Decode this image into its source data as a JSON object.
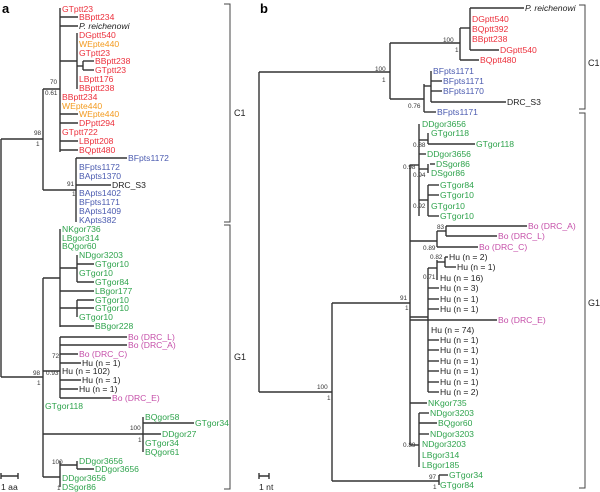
{
  "colors": {
    "red": "#ec2f3b",
    "orange": "#f39a1e",
    "blue": "#4b5bb0",
    "green": "#2ea34c",
    "magenta": "#c54fa9",
    "black": "#222222"
  },
  "panel_a": {
    "label": "a",
    "scale": "1 aa",
    "clades": [
      "C1",
      "G1"
    ],
    "leaves": [
      {
        "text": "GTptt23",
        "c": "red"
      },
      {
        "text": "BBptt234",
        "c": "red"
      },
      {
        "text": "P. reichenowi",
        "c": "black",
        "italic": true
      },
      {
        "text": "DGptt540",
        "c": "red"
      },
      {
        "text": "WEpte440",
        "c": "orange"
      },
      {
        "text": "GTptt23",
        "c": "red"
      },
      {
        "text": "BBptt238",
        "c": "red"
      },
      {
        "text": "GTptt23",
        "c": "red"
      },
      {
        "text": "LBptt176",
        "c": "red"
      },
      {
        "text": "BBptt238",
        "c": "red"
      },
      {
        "text": "BBptt234",
        "c": "red"
      },
      {
        "text": "WEpte440",
        "c": "orange"
      },
      {
        "text": "WEpte440",
        "c": "orange"
      },
      {
        "text": "DPptt294",
        "c": "red"
      },
      {
        "text": "GTptt722",
        "c": "red"
      },
      {
        "text": "LBptt208",
        "c": "red"
      },
      {
        "text": "BQptt480",
        "c": "red"
      },
      {
        "text": "BFpts1172",
        "c": "blue"
      },
      {
        "text": "BFpts1172",
        "c": "blue"
      },
      {
        "text": "BApts1370",
        "c": "blue"
      },
      {
        "text": "DRC_S3",
        "c": "black"
      },
      {
        "text": "BApts1402",
        "c": "blue"
      },
      {
        "text": "BFpts1171",
        "c": "blue"
      },
      {
        "text": "BApts1409",
        "c": "blue"
      },
      {
        "text": "KApts382",
        "c": "blue"
      },
      {
        "text": "NKgor736",
        "c": "green"
      },
      {
        "text": "LBgor314",
        "c": "green"
      },
      {
        "text": "BQgor60",
        "c": "green"
      },
      {
        "text": "NDgor3203",
        "c": "green"
      },
      {
        "text": "GTgor10",
        "c": "green"
      },
      {
        "text": "GTgor10",
        "c": "green"
      },
      {
        "text": "GTgor84",
        "c": "green"
      },
      {
        "text": "LBgor177",
        "c": "green"
      },
      {
        "text": "GTgor10",
        "c": "green"
      },
      {
        "text": "GTgor10",
        "c": "green"
      },
      {
        "text": "GTgor10",
        "c": "green"
      },
      {
        "text": "BBgor228",
        "c": "green"
      },
      {
        "text": "Bo (DRC_L)",
        "c": "magenta"
      },
      {
        "text": "Bo (DRC_A)",
        "c": "magenta"
      },
      {
        "text": "Bo (DRC_C)",
        "c": "magenta"
      },
      {
        "text": "Hu (n = 1)",
        "c": "black"
      },
      {
        "text": "Hu (n = 102)",
        "c": "black"
      },
      {
        "text": "Hu (n = 1)",
        "c": "black"
      },
      {
        "text": "Hu (n = 1)",
        "c": "black"
      },
      {
        "text": "Bo (DRC_E)",
        "c": "magenta"
      },
      {
        "text": "GTgor118",
        "c": "green"
      },
      {
        "text": "BQgor58",
        "c": "green"
      },
      {
        "text": "GTgor34",
        "c": "green"
      },
      {
        "text": "DDgor27",
        "c": "green"
      },
      {
        "text": "GTgor34",
        "c": "green"
      },
      {
        "text": "BQgor61",
        "c": "green"
      },
      {
        "text": "DDgor3656",
        "c": "green"
      },
      {
        "text": "DDgor3656",
        "c": "green"
      },
      {
        "text": "DDgor3656",
        "c": "green"
      },
      {
        "text": "DSgor86",
        "c": "green"
      }
    ],
    "support": [
      "70",
      "0.61",
      "98",
      "1",
      "91",
      "1",
      "72",
      "98",
      "0.93",
      "1",
      "100",
      "1",
      "100",
      "1"
    ]
  },
  "panel_b": {
    "label": "b",
    "scale": "1 nt",
    "clades": [
      "C1",
      "G1"
    ],
    "leaves": [
      {
        "text": "P. reichenowi",
        "c": "black",
        "italic": true
      },
      {
        "text": "DGptt540",
        "c": "red"
      },
      {
        "text": "BQptt392",
        "c": "red"
      },
      {
        "text": "BBptt238",
        "c": "red"
      },
      {
        "text": "DGptt540",
        "c": "red"
      },
      {
        "text": "BQptt480",
        "c": "red"
      },
      {
        "text": "BFpts1171",
        "c": "blue"
      },
      {
        "text": "BFpts1171",
        "c": "blue"
      },
      {
        "text": "BFpts1170",
        "c": "blue"
      },
      {
        "text": "DRC_S3",
        "c": "black"
      },
      {
        "text": "BFpts1171",
        "c": "blue"
      },
      {
        "text": "DDgor3656",
        "c": "green"
      },
      {
        "text": "GTgor118",
        "c": "green"
      },
      {
        "text": "GTgor118",
        "c": "green"
      },
      {
        "text": "DDgor3656",
        "c": "green"
      },
      {
        "text": "DSgor86",
        "c": "green"
      },
      {
        "text": "DSgor86",
        "c": "green"
      },
      {
        "text": "GTgor84",
        "c": "green"
      },
      {
        "text": "GTgor10",
        "c": "green"
      },
      {
        "text": "GTgor10",
        "c": "green"
      },
      {
        "text": "GTgor10",
        "c": "green"
      },
      {
        "text": "Bo (DRC_A)",
        "c": "magenta"
      },
      {
        "text": "Bo (DRC_L)",
        "c": "magenta"
      },
      {
        "text": "Bo (DRC_C)",
        "c": "magenta"
      },
      {
        "text": "Hu (n = 2)",
        "c": "black"
      },
      {
        "text": "Hu (n = 1)",
        "c": "black"
      },
      {
        "text": "Hu (n = 16)",
        "c": "black"
      },
      {
        "text": "Hu (n = 3)",
        "c": "black"
      },
      {
        "text": "Hu (n = 1)",
        "c": "black"
      },
      {
        "text": "Hu (n = 1)",
        "c": "black"
      },
      {
        "text": "Bo (DRC_E)",
        "c": "magenta"
      },
      {
        "text": "Hu (n = 74)",
        "c": "black"
      },
      {
        "text": "Hu (n = 1)",
        "c": "black"
      },
      {
        "text": "Hu (n = 1)",
        "c": "black"
      },
      {
        "text": "Hu (n = 1)",
        "c": "black"
      },
      {
        "text": "Hu (n = 1)",
        "c": "black"
      },
      {
        "text": "Hu (n = 1)",
        "c": "black"
      },
      {
        "text": "Hu (n = 2)",
        "c": "black"
      },
      {
        "text": "NKgor735",
        "c": "green"
      },
      {
        "text": "NDgor3203",
        "c": "green"
      },
      {
        "text": "BQgor60",
        "c": "green"
      },
      {
        "text": "NDgor3203",
        "c": "green"
      },
      {
        "text": "NDgor3203",
        "c": "green"
      },
      {
        "text": "LBgor314",
        "c": "green"
      },
      {
        "text": "LBgor185",
        "c": "green"
      },
      {
        "text": "GTgor34",
        "c": "green"
      },
      {
        "text": "GTgor84",
        "c": "green"
      }
    ],
    "support": [
      "100",
      "1",
      "100",
      "1",
      "0.76",
      "0.88",
      "0.98",
      "0.94",
      "0.92",
      "83",
      "0.89",
      "0.82",
      "0.71",
      "91",
      "1",
      "100",
      "1",
      "0.89",
      "97",
      "1"
    ]
  }
}
